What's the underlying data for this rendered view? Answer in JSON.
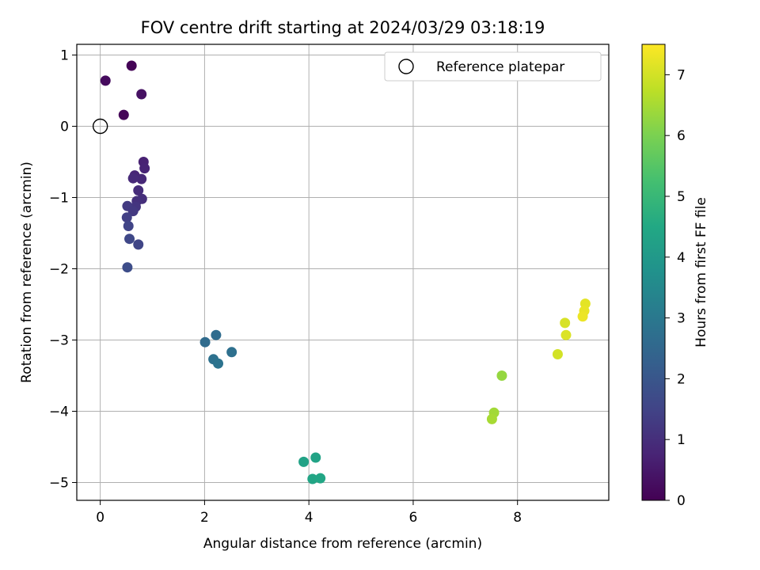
{
  "chart_data": {
    "type": "scatter",
    "title": "FOV centre drift starting at 2024/03/29 03:18:19",
    "xlabel": "Angular distance from reference (arcmin)",
    "ylabel": "Rotation from reference (arcmin)",
    "xlim": [
      -0.45,
      9.75
    ],
    "ylim": [
      -5.25,
      1.15
    ],
    "xticks": [
      0,
      2,
      4,
      6,
      8
    ],
    "yticks": [
      1,
      0,
      -1,
      -2,
      -3,
      -4,
      -5
    ],
    "xtick_labels": [
      "0",
      "2",
      "4",
      "6",
      "8"
    ],
    "ytick_labels": [
      "1",
      "0",
      "−1",
      "−2",
      "−3",
      "−4",
      "−5"
    ],
    "grid": true,
    "legend": {
      "placement": "top-right",
      "entries": [
        "Reference platepar"
      ]
    },
    "reference_point": {
      "x": 0,
      "y": 0,
      "label": "Reference platepar"
    },
    "colorbar": {
      "label": "Hours from first FF file",
      "range": [
        0,
        7.5
      ],
      "ticks": [
        0,
        1,
        2,
        3,
        4,
        5,
        6,
        7
      ],
      "tick_labels": [
        "0",
        "1",
        "2",
        "3",
        "4",
        "5",
        "6",
        "7"
      ],
      "colormap": "viridis"
    },
    "points": [
      {
        "x": 0.6,
        "y": 0.85,
        "hours": 0.05
      },
      {
        "x": 0.1,
        "y": 0.64,
        "hours": 0.2
      },
      {
        "x": 0.79,
        "y": 0.45,
        "hours": 0.35
      },
      {
        "x": 0.45,
        "y": 0.16,
        "hours": 0.1
      },
      {
        "x": 0.83,
        "y": -0.5,
        "hours": 0.7
      },
      {
        "x": 0.85,
        "y": -0.59,
        "hours": 0.75
      },
      {
        "x": 0.66,
        "y": -0.69,
        "hours": 0.8
      },
      {
        "x": 0.79,
        "y": -0.74,
        "hours": 0.85
      },
      {
        "x": 0.63,
        "y": -0.73,
        "hours": 0.9
      },
      {
        "x": 0.73,
        "y": -0.9,
        "hours": 0.95
      },
      {
        "x": 0.8,
        "y": -1.02,
        "hours": 1.0
      },
      {
        "x": 0.7,
        "y": -1.05,
        "hours": 1.05
      },
      {
        "x": 0.68,
        "y": -1.13,
        "hours": 1.15
      },
      {
        "x": 0.52,
        "y": -1.12,
        "hours": 1.3
      },
      {
        "x": 0.63,
        "y": -1.19,
        "hours": 1.25
      },
      {
        "x": 0.51,
        "y": -1.28,
        "hours": 1.4
      },
      {
        "x": 0.54,
        "y": -1.4,
        "hours": 1.5
      },
      {
        "x": 0.56,
        "y": -1.58,
        "hours": 1.6
      },
      {
        "x": 0.73,
        "y": -1.66,
        "hours": 1.55
      },
      {
        "x": 0.52,
        "y": -1.98,
        "hours": 1.75
      },
      {
        "x": 2.01,
        "y": -3.03,
        "hours": 2.6
      },
      {
        "x": 2.22,
        "y": -2.93,
        "hours": 2.65
      },
      {
        "x": 2.52,
        "y": -3.17,
        "hours": 2.75
      },
      {
        "x": 2.17,
        "y": -3.27,
        "hours": 2.8
      },
      {
        "x": 2.26,
        "y": -3.33,
        "hours": 2.85
      },
      {
        "x": 3.9,
        "y": -4.71,
        "hours": 4.3
      },
      {
        "x": 4.13,
        "y": -4.65,
        "hours": 4.35
      },
      {
        "x": 4.07,
        "y": -4.95,
        "hours": 4.4
      },
      {
        "x": 4.22,
        "y": -4.94,
        "hours": 4.45
      },
      {
        "x": 7.7,
        "y": -3.5,
        "hours": 6.3
      },
      {
        "x": 7.55,
        "y": -4.02,
        "hours": 6.45
      },
      {
        "x": 7.51,
        "y": -4.11,
        "hours": 6.5
      },
      {
        "x": 8.77,
        "y": -3.2,
        "hours": 7.0
      },
      {
        "x": 8.91,
        "y": -2.76,
        "hours": 7.05
      },
      {
        "x": 8.93,
        "y": -2.93,
        "hours": 7.1
      },
      {
        "x": 9.3,
        "y": -2.49,
        "hours": 7.2
      },
      {
        "x": 9.28,
        "y": -2.59,
        "hours": 7.25
      },
      {
        "x": 9.25,
        "y": -2.67,
        "hours": 7.3
      }
    ]
  }
}
